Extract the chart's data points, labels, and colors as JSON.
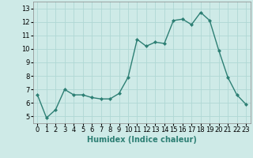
{
  "x": [
    0,
    1,
    2,
    3,
    4,
    5,
    6,
    7,
    8,
    9,
    10,
    11,
    12,
    13,
    14,
    15,
    16,
    17,
    18,
    19,
    20,
    21,
    22,
    23
  ],
  "y": [
    6.6,
    4.9,
    5.5,
    7.0,
    6.6,
    6.6,
    6.4,
    6.3,
    6.3,
    6.7,
    7.9,
    10.7,
    10.2,
    10.5,
    10.4,
    12.1,
    12.2,
    11.8,
    12.7,
    12.1,
    9.9,
    7.9,
    6.6,
    5.9
  ],
  "line_color": "#2d7f74",
  "marker": "D",
  "markersize": 2.0,
  "linewidth": 1.0,
  "bg_color": "#ceeae7",
  "grid_color": "#b0d8d4",
  "xlabel": "Humidex (Indice chaleur)",
  "xlabel_fontsize": 7,
  "tick_fontsize": 6,
  "ylim": [
    4.5,
    13.5
  ],
  "yticks": [
    5,
    6,
    7,
    8,
    9,
    10,
    11,
    12,
    13
  ],
  "xlim": [
    -0.5,
    23.5
  ],
  "xticks": [
    0,
    1,
    2,
    3,
    4,
    5,
    6,
    7,
    8,
    9,
    10,
    11,
    12,
    13,
    14,
    15,
    16,
    17,
    18,
    19,
    20,
    21,
    22,
    23
  ]
}
